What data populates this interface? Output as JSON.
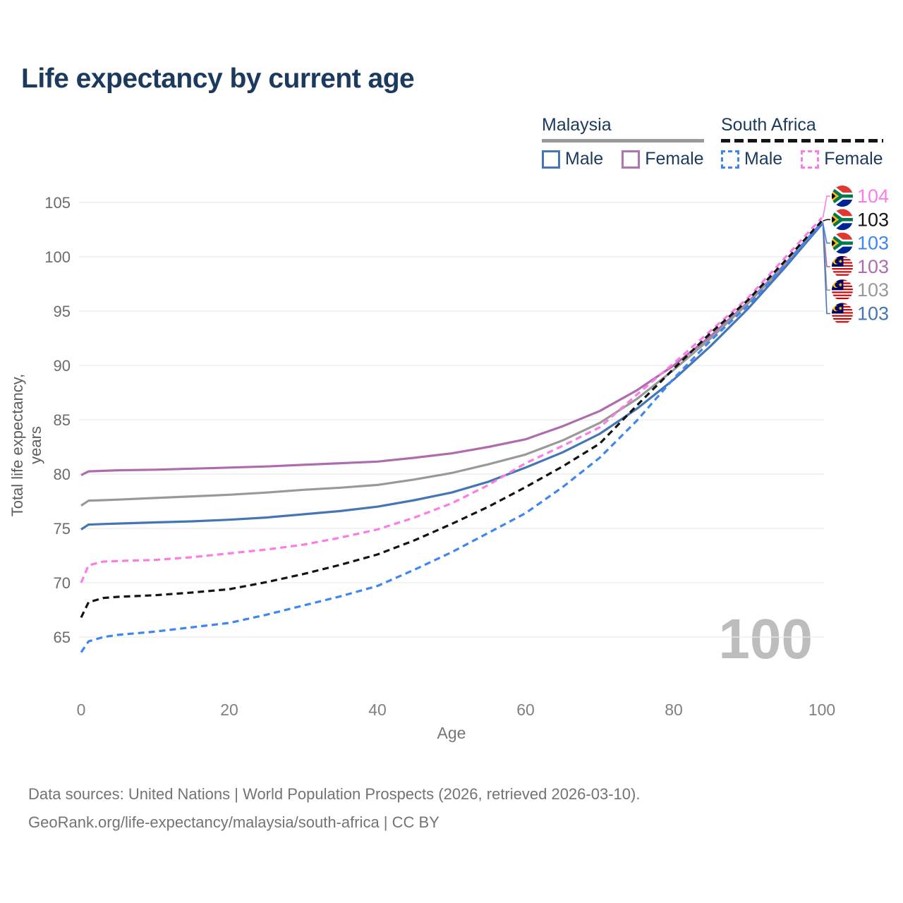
{
  "page": {
    "title": "Life expectancy by current age",
    "watermark_age": "100",
    "footer_line1": "Data sources: United Nations | World Population Prospects (2026, retrieved 2026-03-10).",
    "footer_line2": "GeoRank.org/life-expectancy/malaysia/south-africa | CC BY"
  },
  "legend": {
    "groups": [
      {
        "country": "Malaysia",
        "line_style": "solid",
        "line_color": "#9a9a9a",
        "items": [
          {
            "label": "Male",
            "color": "#4475b4",
            "dashed": false
          },
          {
            "label": "Female",
            "color": "#b173b1",
            "dashed": false
          }
        ]
      },
      {
        "country": "South Africa",
        "line_style": "dashed",
        "line_color": "#141414",
        "items": [
          {
            "label": "Male",
            "color": "#3f86f0",
            "dashed": true
          },
          {
            "label": "Female",
            "color": "#fb7de4",
            "dashed": true
          }
        ]
      }
    ]
  },
  "chart_data": {
    "type": "line",
    "title": "Life expectancy by current age",
    "xlabel": "Age",
    "ylabel": "Total life expectancy, years",
    "x_ticks": [
      0,
      20,
      40,
      60,
      80,
      100
    ],
    "y_ticks": [
      65,
      70,
      75,
      80,
      85,
      90,
      95,
      100,
      105
    ],
    "xlim": [
      0,
      100
    ],
    "ylim": [
      63,
      106
    ],
    "grid": "horizontal",
    "legend_position": "top-right",
    "ages": [
      0,
      1,
      3,
      5,
      10,
      15,
      20,
      25,
      30,
      35,
      40,
      45,
      50,
      55,
      60,
      65,
      70,
      75,
      80,
      85,
      90,
      95,
      100
    ],
    "series": [
      {
        "name": "Malaysia Female",
        "country": "Malaysia",
        "sex": "Female",
        "color": "#ae6cae",
        "dashed": false,
        "end_value_label": "103",
        "label_slot": 3,
        "flag": "my",
        "values": [
          79.9,
          80.25,
          80.3,
          80.35,
          80.4,
          80.5,
          80.6,
          80.7,
          80.85,
          81.0,
          81.15,
          81.5,
          81.9,
          82.5,
          83.2,
          84.4,
          85.8,
          87.7,
          90.0,
          92.7,
          95.8,
          99.3,
          103.2
        ]
      },
      {
        "name": "Malaysia",
        "country": "Malaysia",
        "sex": "Both sexes",
        "color": "#999999",
        "dashed": false,
        "end_value_label": "103",
        "label_slot": 4,
        "flag": "my",
        "values": [
          77.1,
          77.55,
          77.6,
          77.65,
          77.8,
          77.95,
          78.1,
          78.3,
          78.55,
          78.75,
          79.0,
          79.5,
          80.1,
          80.9,
          81.8,
          83.1,
          84.7,
          86.9,
          89.6,
          92.5,
          95.7,
          99.2,
          103.1
        ]
      },
      {
        "name": "Malaysia Male",
        "country": "Malaysia",
        "sex": "Male",
        "color": "#4475b4",
        "dashed": false,
        "end_value_label": "103",
        "label_slot": 5,
        "flag": "my",
        "values": [
          74.9,
          75.35,
          75.4,
          75.45,
          75.55,
          75.65,
          75.8,
          76.0,
          76.3,
          76.6,
          77.0,
          77.6,
          78.3,
          79.3,
          80.6,
          82.0,
          83.7,
          86.0,
          88.7,
          91.8,
          95.2,
          99.0,
          103.0
        ]
      },
      {
        "name": "South Africa Female",
        "country": "South Africa",
        "sex": "Female",
        "color": "#fb7de4",
        "dashed": true,
        "end_value_label": "104",
        "label_slot": 0,
        "flag": "za",
        "values": [
          70.0,
          71.6,
          71.95,
          72.0,
          72.1,
          72.35,
          72.7,
          73.05,
          73.5,
          74.15,
          74.9,
          76.0,
          77.3,
          79.0,
          81.0,
          82.6,
          84.3,
          87.3,
          90.2,
          93.2,
          96.2,
          99.9,
          103.6
        ]
      },
      {
        "name": "South Africa",
        "country": "South Africa",
        "sex": "Both sexes",
        "color": "#141414",
        "dashed": true,
        "end_value_label": "103",
        "label_slot": 1,
        "flag": "za",
        "values": [
          66.8,
          68.2,
          68.6,
          68.7,
          68.85,
          69.1,
          69.4,
          70.05,
          70.8,
          71.65,
          72.6,
          73.9,
          75.4,
          77.0,
          78.8,
          80.7,
          82.8,
          86.3,
          89.7,
          93.0,
          96.0,
          99.6,
          103.3
        ]
      },
      {
        "name": "South Africa Male",
        "country": "South Africa",
        "sex": "Male",
        "color": "#3f86f0",
        "dashed": true,
        "end_value_label": "103",
        "label_slot": 2,
        "flag": "za",
        "values": [
          63.6,
          64.6,
          65.0,
          65.2,
          65.5,
          65.9,
          66.3,
          67.05,
          67.9,
          68.75,
          69.7,
          71.2,
          72.8,
          74.6,
          76.4,
          78.8,
          81.5,
          84.9,
          88.8,
          92.3,
          95.5,
          99.2,
          103.1
        ]
      }
    ]
  }
}
